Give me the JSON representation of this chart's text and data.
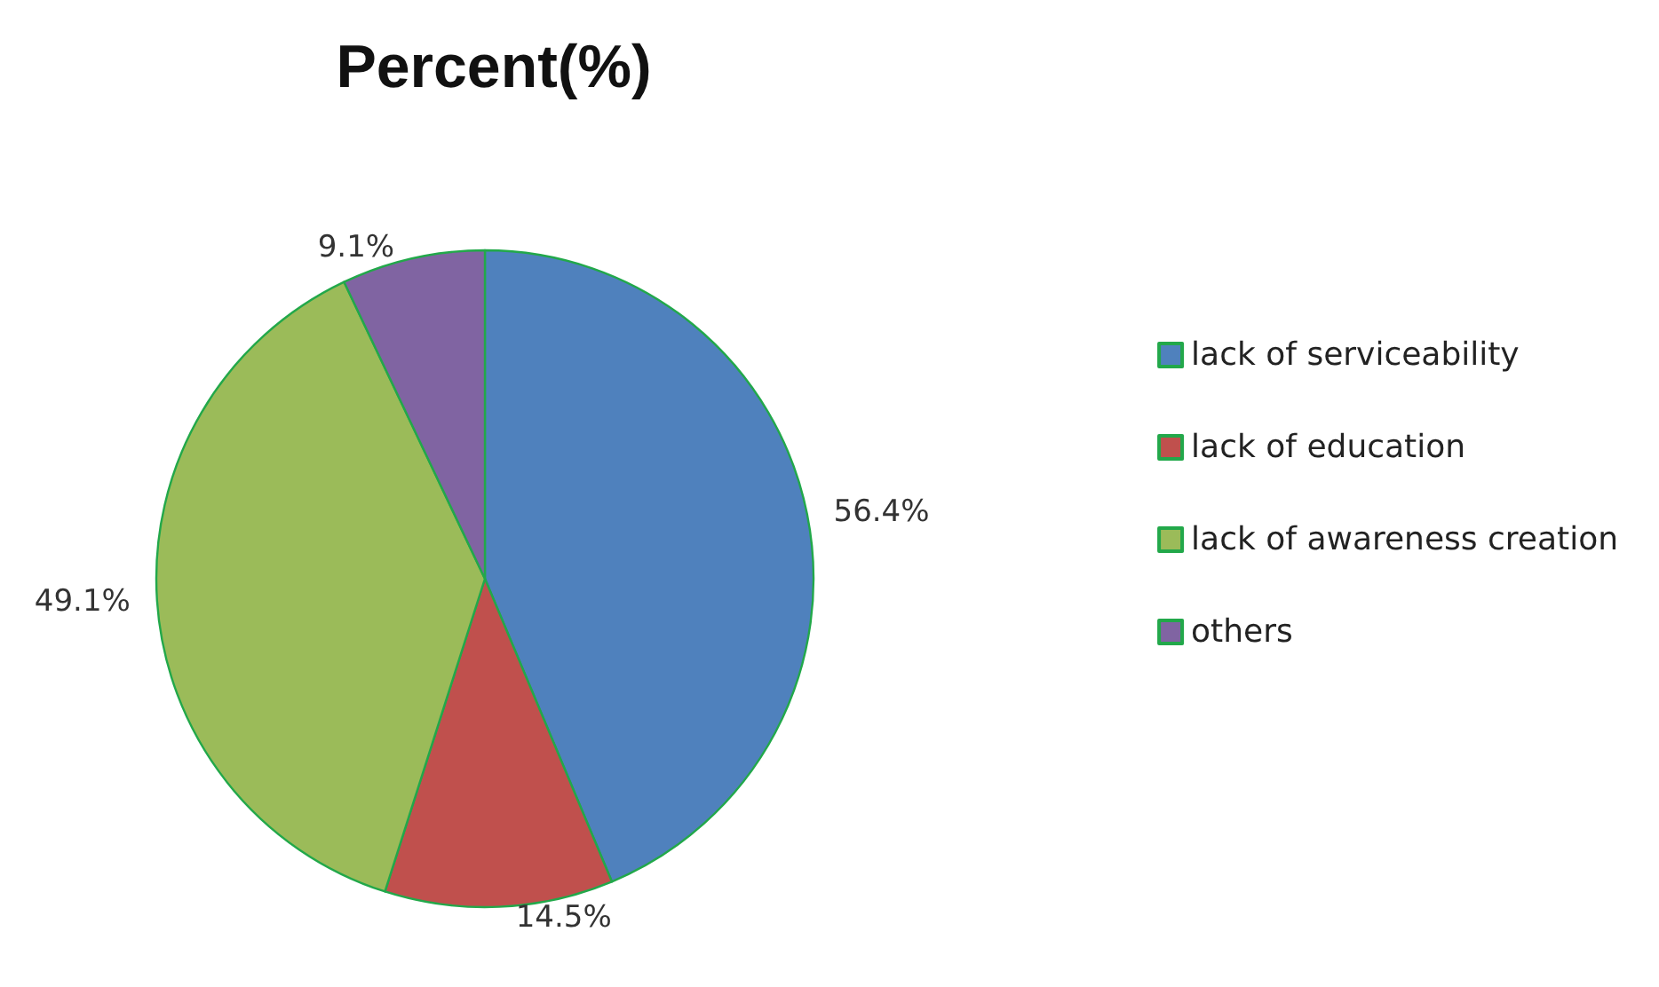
{
  "chart_data": {
    "type": "pie",
    "title": "Percent(%)",
    "categories": [
      "lack of serviceability",
      "lack of education",
      "lack of awareness creation",
      "others"
    ],
    "values": [
      56.4,
      14.5,
      49.1,
      9.1
    ],
    "value_labels": [
      "56.4%",
      "14.5%",
      "49.1%",
      "9.1%"
    ],
    "colors": [
      "#4f81bd",
      "#c0504d",
      "#9bbb59",
      "#8064a2"
    ],
    "legend": "right"
  }
}
